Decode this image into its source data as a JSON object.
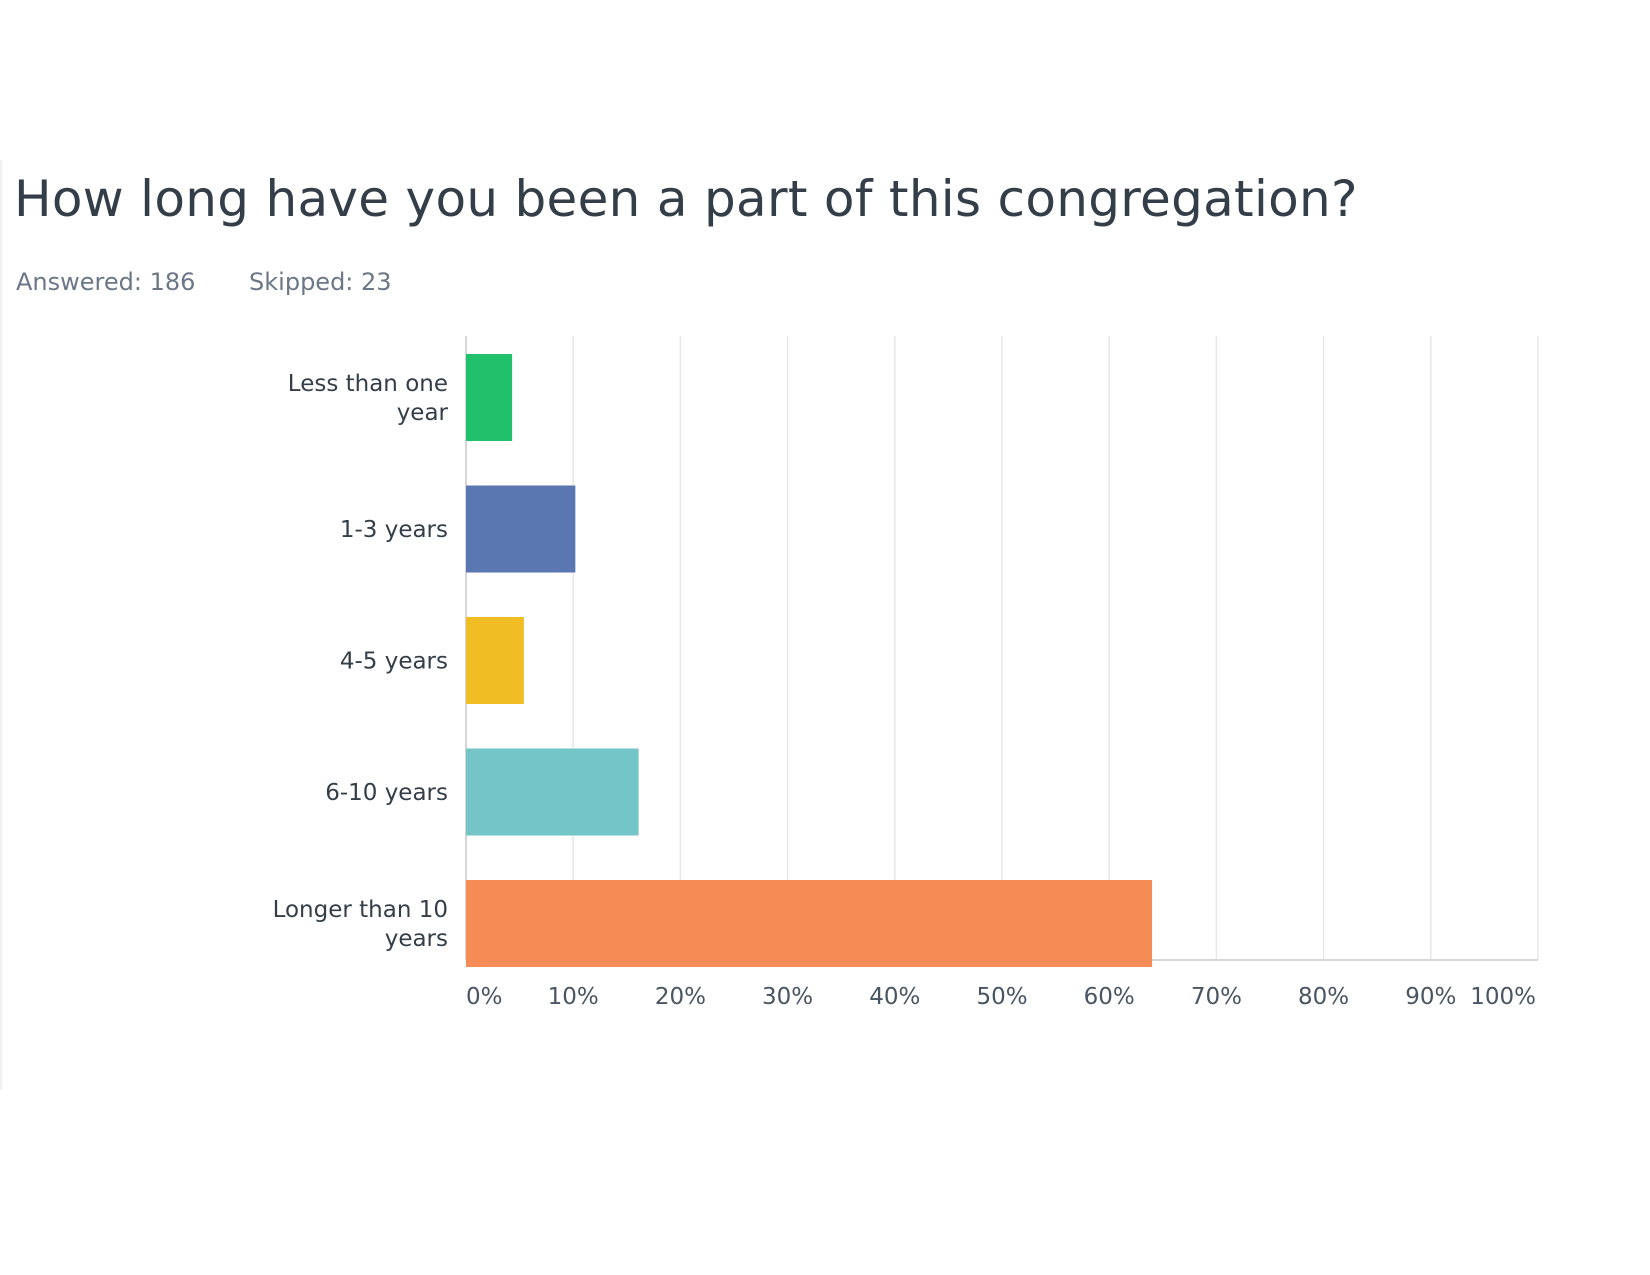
{
  "header": {
    "question": "How long have you been a part of this congregation?",
    "answered": "Answered: 186",
    "skipped": "Skipped: 23"
  },
  "chart_data": {
    "type": "bar",
    "orientation": "horizontal",
    "title": "How long have you been a part of this congregation?",
    "categories": [
      [
        "Less than one",
        "year"
      ],
      [
        "1-3 years"
      ],
      [
        "4-5 years"
      ],
      [
        "6-10 years"
      ],
      [
        "Longer than 10",
        "years"
      ]
    ],
    "values": [
      4.3,
      10.2,
      5.4,
      16.1,
      64.0
    ],
    "colors": [
      "#21c06b",
      "#5b77b2",
      "#f0bd24",
      "#74c5c8",
      "#f58b55"
    ],
    "xlim": [
      0,
      100
    ],
    "xticks": [
      0,
      10,
      20,
      30,
      40,
      50,
      60,
      70,
      80,
      90,
      100
    ],
    "xtick_labels": [
      "0%",
      "10%",
      "20%",
      "30%",
      "40%",
      "50%",
      "60%",
      "70%",
      "80%",
      "90%",
      "100%"
    ],
    "xlabel": "",
    "ylabel": "",
    "grid": true,
    "legend": "none"
  }
}
